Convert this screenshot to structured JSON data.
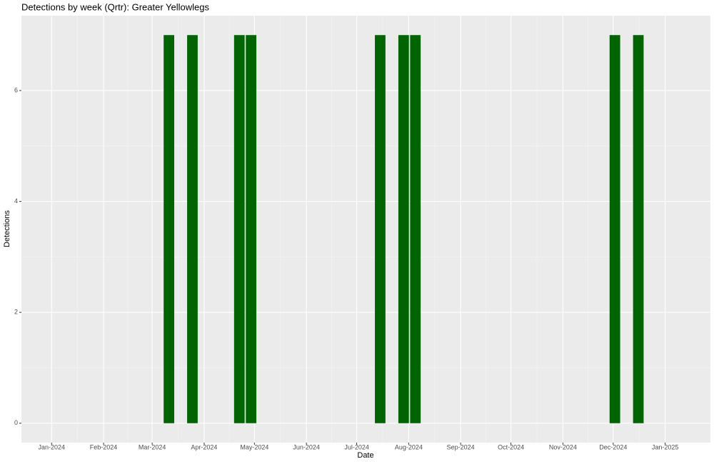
{
  "chart_data": {
    "type": "bar",
    "title": "Detections by week (Qrtr): Greater Yellowlegs",
    "x_label": "Date",
    "y_label": "Detections",
    "x": [
      "2024-03-11",
      "2024-03-25",
      "2024-04-22",
      "2024-04-29",
      "2024-07-15",
      "2024-07-29",
      "2024-08-05",
      "2024-12-02",
      "2024-12-16"
    ],
    "values": [
      7,
      7,
      7,
      7,
      7,
      7,
      7,
      7,
      7
    ],
    "color": "#006400",
    "xlim": [
      "2023-12-14",
      "2025-01-28"
    ],
    "xticks": [
      {
        "value": "2024-01-01",
        "label": "Jan-2024"
      },
      {
        "value": "2024-02-01",
        "label": "Feb-2024"
      },
      {
        "value": "2024-03-01",
        "label": "Mar-2024"
      },
      {
        "value": "2024-04-01",
        "label": "Apr-2024"
      },
      {
        "value": "2024-05-01",
        "label": "May-2024"
      },
      {
        "value": "2024-06-01",
        "label": "Jun-2024"
      },
      {
        "value": "2024-07-01",
        "label": "Jul-2024"
      },
      {
        "value": "2024-08-01",
        "label": "Aug-2024"
      },
      {
        "value": "2024-09-01",
        "label": "Sep-2024"
      },
      {
        "value": "2024-10-01",
        "label": "Oct-2024"
      },
      {
        "value": "2024-11-01",
        "label": "Nov-2024"
      },
      {
        "value": "2024-12-01",
        "label": "Dec-2024"
      },
      {
        "value": "2025-01-01",
        "label": "Jan-2025"
      }
    ],
    "ylim": [
      -0.35,
      7.35
    ],
    "yticks": [
      0,
      2,
      4,
      6
    ],
    "grid": true
  }
}
